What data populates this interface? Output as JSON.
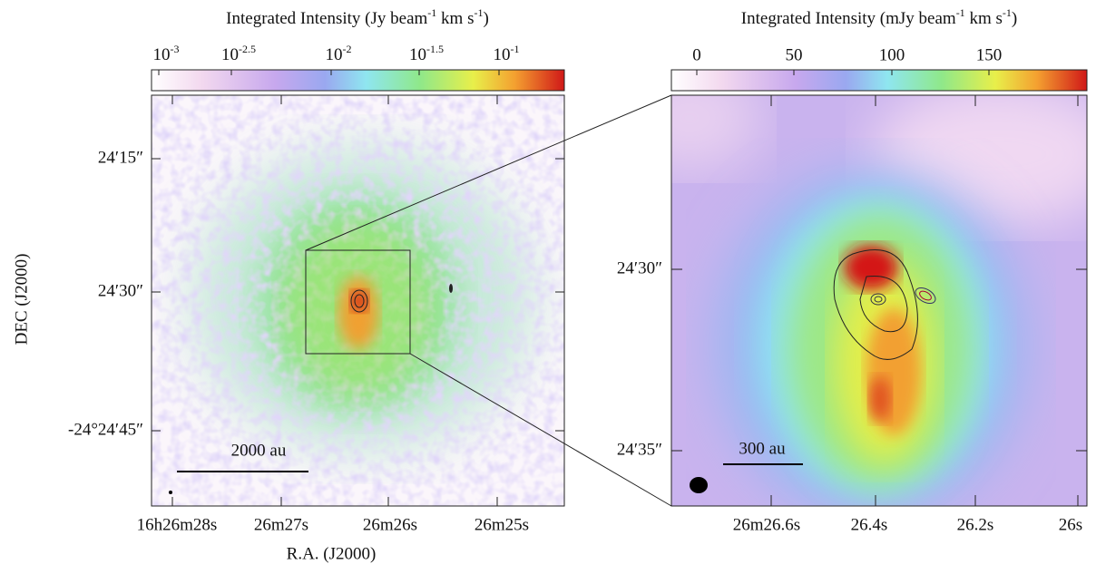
{
  "left_panel": {
    "colorbar_title": [
      "Integrated Intensity (Jy beam",
      "-1",
      " km s",
      "-1",
      ")"
    ],
    "colorbar_ticks": [
      {
        "base": "10",
        "exp": "-3"
      },
      {
        "base": "10",
        "exp": "-2.5"
      },
      {
        "base": "10",
        "exp": "-2"
      },
      {
        "base": "10",
        "exp": "-1.5"
      },
      {
        "base": "10",
        "exp": "-1"
      }
    ],
    "y_ticks": [
      "24′15″",
      "24′30″",
      "-24°24′45″"
    ],
    "x_ticks": [
      "16h26m28s",
      "26m27s",
      "26m26s",
      "26m25s"
    ],
    "x_label": "R.A. (J2000)",
    "y_label": "DEC (J2000)",
    "scale_bar": "2000 au"
  },
  "right_panel": {
    "colorbar_title": [
      "Integrated Intensity (mJy beam",
      "-1",
      " km s",
      "-1",
      ")"
    ],
    "colorbar_ticks": [
      "0",
      "50",
      "100",
      "150"
    ],
    "y_ticks": [
      "24′30″",
      "24′35″"
    ],
    "x_ticks": [
      "26m26.6s",
      "26.4s",
      "26.2s",
      "26s"
    ],
    "scale_bar": "300 au"
  }
}
